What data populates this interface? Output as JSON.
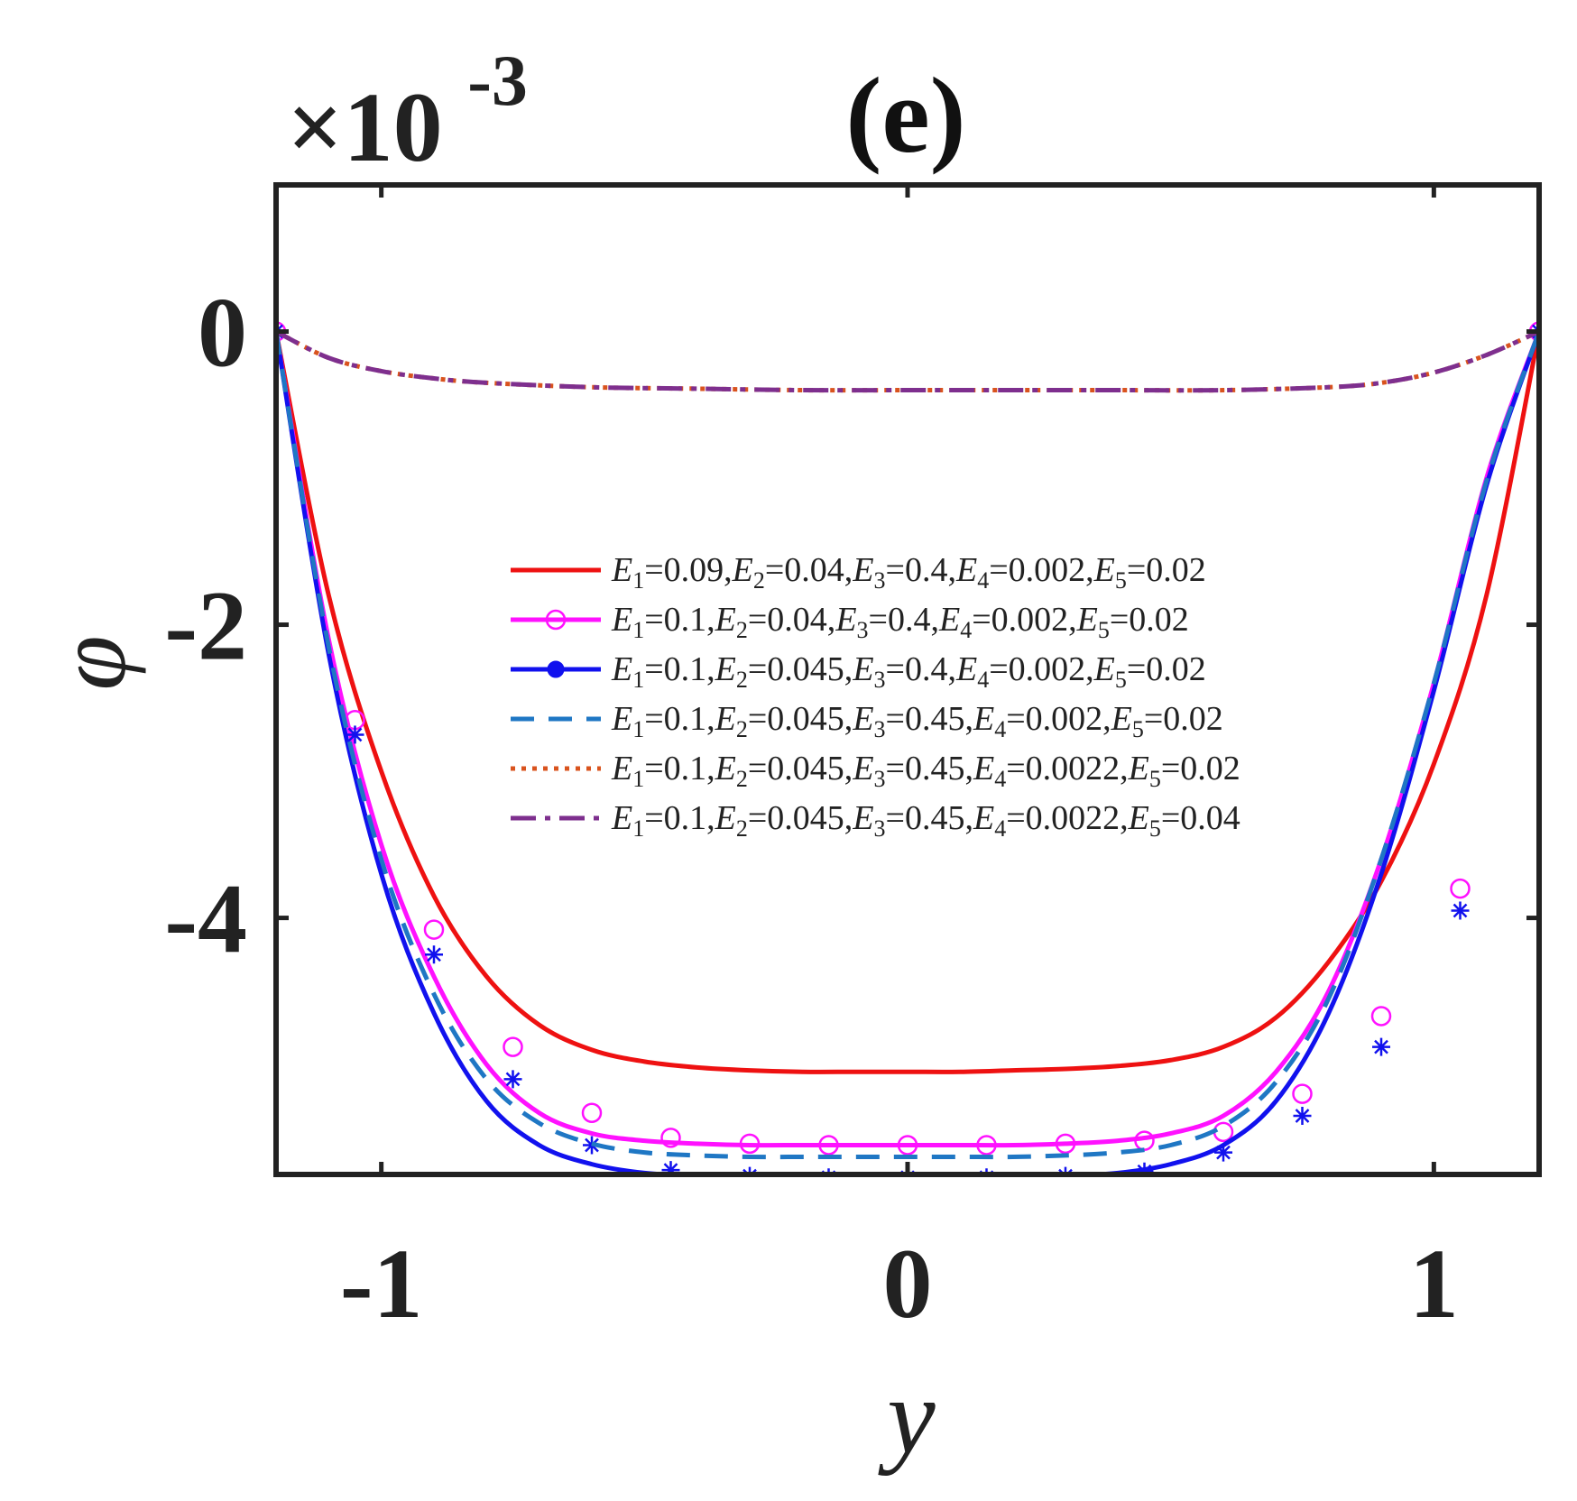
{
  "chart_data": {
    "type": "line",
    "title": "(e)",
    "xlabel": "y",
    "ylabel": "φ",
    "y_multiplier_base": "×10",
    "y_multiplier_exp": "-3",
    "xlim": [
      -1.2,
      1.2
    ],
    "ylim": [
      -5.75,
      1.0
    ],
    "xticks": [
      -1,
      0,
      1
    ],
    "xtick_labels": [
      "-1",
      "0",
      "1"
    ],
    "yticks": [
      0,
      -2,
      -4
    ],
    "ytick_labels": [
      "0",
      "-2",
      "-4"
    ],
    "grid": false,
    "legend_position": "center",
    "series": [
      {
        "name": "E1=0.09,E2=0.04,E3=0.4,E4=0.002,E5=0.02",
        "legend_parts": [
          [
            "E",
            "1",
            "=0.09,"
          ],
          [
            "E",
            "2",
            "=0.04,"
          ],
          [
            "E",
            "3",
            "=0.4,"
          ],
          [
            "E",
            "4",
            "=0.002,"
          ],
          [
            "E",
            "5",
            "=0.02"
          ]
        ],
        "color": "#ee1111",
        "style": "solid",
        "marker": "none",
        "x": [
          -1.2,
          -1.1,
          -1.0,
          -0.9,
          -0.8,
          -0.7,
          -0.6,
          -0.5,
          -0.4,
          -0.3,
          -0.2,
          -0.1,
          0,
          0.1,
          0.2,
          0.3,
          0.4,
          0.5,
          0.6,
          0.7,
          0.8,
          0.9,
          1.0,
          1.1,
          1.2
        ],
        "y": [
          0,
          -1.8,
          -3.0,
          -3.85,
          -4.4,
          -4.73,
          -4.9,
          -4.98,
          -5.02,
          -5.04,
          -5.05,
          -5.05,
          -5.05,
          -5.05,
          -5.04,
          -5.03,
          -5.01,
          -4.97,
          -4.88,
          -4.68,
          -4.3,
          -3.75,
          -2.95,
          -1.8,
          0
        ]
      },
      {
        "name": "E1=0.1,E2=0.04,E3=0.4,E4=0.002,E5=0.02",
        "legend_parts": [
          [
            "E",
            "1",
            "=0.1,"
          ],
          [
            "E",
            "2",
            "=0.04,"
          ],
          [
            "E",
            "3",
            "=0.4,"
          ],
          [
            "E",
            "4",
            "=0.002,"
          ],
          [
            "E",
            "5",
            "=0.02"
          ]
        ],
        "color": "#ff11ff",
        "style": "solid",
        "marker": "circle",
        "x": [
          -1.2,
          -1.1,
          -1.0,
          -0.9,
          -0.8,
          -0.7,
          -0.6,
          -0.5,
          -0.4,
          -0.3,
          -0.2,
          -0.1,
          0,
          0.1,
          0.2,
          0.3,
          0.4,
          0.5,
          0.6,
          0.7,
          0.8,
          0.9,
          1.0,
          1.1,
          1.2
        ],
        "y": [
          0,
          -2.1,
          -3.5,
          -4.4,
          -5.0,
          -5.33,
          -5.47,
          -5.52,
          -5.54,
          -5.55,
          -5.55,
          -5.55,
          -5.55,
          -5.55,
          -5.55,
          -5.54,
          -5.52,
          -5.47,
          -5.35,
          -5.05,
          -4.5,
          -3.6,
          -2.4,
          -1.0,
          0
        ],
        "markers_x": [
          -1.2,
          -1.05,
          -0.9,
          -0.75,
          -0.6,
          -0.45,
          -0.3,
          -0.15,
          0,
          0.15,
          0.3,
          0.45,
          0.6,
          0.75,
          0.9,
          1.05,
          1.2
        ],
        "markers_y": [
          0,
          -2.65,
          -4.08,
          -4.88,
          -5.33,
          -5.5,
          -5.54,
          -5.55,
          -5.55,
          -5.55,
          -5.54,
          -5.52,
          -5.46,
          -5.2,
          -4.67,
          -3.8,
          0
        ]
      },
      {
        "name": "E1=0.1,E2=0.045,E3=0.4,E4=0.002,E5=0.02",
        "legend_parts": [
          [
            "E",
            "1",
            "=0.1,"
          ],
          [
            "E",
            "2",
            "=0.045,"
          ],
          [
            "E",
            "3",
            "=0.4,"
          ],
          [
            "E",
            "4",
            "=0.002,"
          ],
          [
            "E",
            "5",
            "=0.02"
          ]
        ],
        "color": "#1111ee",
        "style": "solid",
        "marker": "asterisk",
        "x": [
          -1.2,
          -1.1,
          -1.0,
          -0.9,
          -0.8,
          -0.7,
          -0.6,
          -0.5,
          -0.4,
          -0.3,
          -0.2,
          -0.1,
          0,
          0.1,
          0.2,
          0.3,
          0.4,
          0.5,
          0.6,
          0.7,
          0.8,
          0.9,
          1.0,
          1.1,
          1.2
        ],
        "y": [
          0,
          -2.2,
          -3.7,
          -4.65,
          -5.25,
          -5.55,
          -5.68,
          -5.74,
          -5.76,
          -5.77,
          -5.77,
          -5.77,
          -5.77,
          -5.77,
          -5.77,
          -5.76,
          -5.74,
          -5.68,
          -5.55,
          -5.25,
          -4.65,
          -3.7,
          -2.45,
          -1.05,
          0
        ],
        "markers_x": [
          -1.2,
          -1.05,
          -0.9,
          -0.75,
          -0.6,
          -0.45,
          -0.3,
          -0.15,
          0,
          0.15,
          0.3,
          0.45,
          0.6,
          0.75,
          0.9,
          1.05,
          1.2
        ],
        "markers_y": [
          0,
          -2.75,
          -4.25,
          -5.1,
          -5.55,
          -5.72,
          -5.76,
          -5.77,
          -5.77,
          -5.77,
          -5.76,
          -5.73,
          -5.6,
          -5.35,
          -4.88,
          -3.95,
          0
        ]
      },
      {
        "name": "E1=0.1,E2=0.045,E3=0.45,E4=0.002,E5=0.02",
        "legend_parts": [
          [
            "E",
            "1",
            "=0.1,"
          ],
          [
            "E",
            "2",
            "=0.045,"
          ],
          [
            "E",
            "3",
            "=0.45,"
          ],
          [
            "E",
            "4",
            "=0.002,"
          ],
          [
            "E",
            "5",
            "=0.02"
          ]
        ],
        "color": "#1f77c4",
        "style": "dashed",
        "marker": "none",
        "x": [
          -1.2,
          -1.1,
          -1.0,
          -0.9,
          -0.8,
          -0.7,
          -0.6,
          -0.5,
          -0.4,
          -0.3,
          -0.2,
          -0.1,
          0,
          0.1,
          0.2,
          0.3,
          0.4,
          0.5,
          0.6,
          0.7,
          0.8,
          0.9,
          1.0,
          1.1,
          1.2
        ],
        "y": [
          0,
          -2.15,
          -3.6,
          -4.52,
          -5.1,
          -5.4,
          -5.54,
          -5.6,
          -5.62,
          -5.63,
          -5.63,
          -5.63,
          -5.63,
          -5.63,
          -5.63,
          -5.62,
          -5.6,
          -5.55,
          -5.42,
          -5.12,
          -4.55,
          -3.6,
          -2.4,
          -1.02,
          0
        ]
      },
      {
        "name": "E1=0.1,E2=0.045,E3=0.45,E4=0.0022,E5=0.02",
        "legend_parts": [
          [
            "E",
            "1",
            "=0.1,"
          ],
          [
            "E",
            "2",
            "=0.045,"
          ],
          [
            "E",
            "3",
            "=0.45,"
          ],
          [
            "E",
            "4",
            "=0.0022,"
          ],
          [
            "E",
            "5",
            "=0.02"
          ]
        ],
        "color": "#d9531e",
        "style": "dotted",
        "marker": "none",
        "x": [
          -1.2,
          -1.1,
          -1.0,
          -0.9,
          -0.8,
          -0.6,
          -0.4,
          -0.2,
          0,
          0.2,
          0.4,
          0.6,
          0.8,
          0.9,
          1.0,
          1.1,
          1.2
        ],
        "y": [
          0,
          -0.18,
          -0.27,
          -0.32,
          -0.35,
          -0.38,
          -0.39,
          -0.4,
          -0.4,
          -0.4,
          -0.4,
          -0.4,
          -0.38,
          -0.35,
          -0.28,
          -0.16,
          0
        ]
      },
      {
        "name": "E1=0.1,E2=0.045,E3=0.45,E4=0.0022,E5=0.04",
        "legend_parts": [
          [
            "E",
            "1",
            "=0.1,"
          ],
          [
            "E",
            "2",
            "=0.045,"
          ],
          [
            "E",
            "3",
            "=0.45,"
          ],
          [
            "E",
            "4",
            "=0.0022,"
          ],
          [
            "E",
            "5",
            "=0.04"
          ]
        ],
        "color": "#7e2f8e",
        "style": "dashdot",
        "marker": "none",
        "x": [
          -1.2,
          -1.1,
          -1.0,
          -0.9,
          -0.8,
          -0.6,
          -0.4,
          -0.2,
          0,
          0.2,
          0.4,
          0.6,
          0.8,
          0.9,
          1.0,
          1.1,
          1.2
        ],
        "y": [
          0,
          -0.18,
          -0.27,
          -0.32,
          -0.35,
          -0.38,
          -0.39,
          -0.4,
          -0.4,
          -0.4,
          -0.4,
          -0.4,
          -0.38,
          -0.35,
          -0.28,
          -0.16,
          0
        ]
      }
    ]
  }
}
